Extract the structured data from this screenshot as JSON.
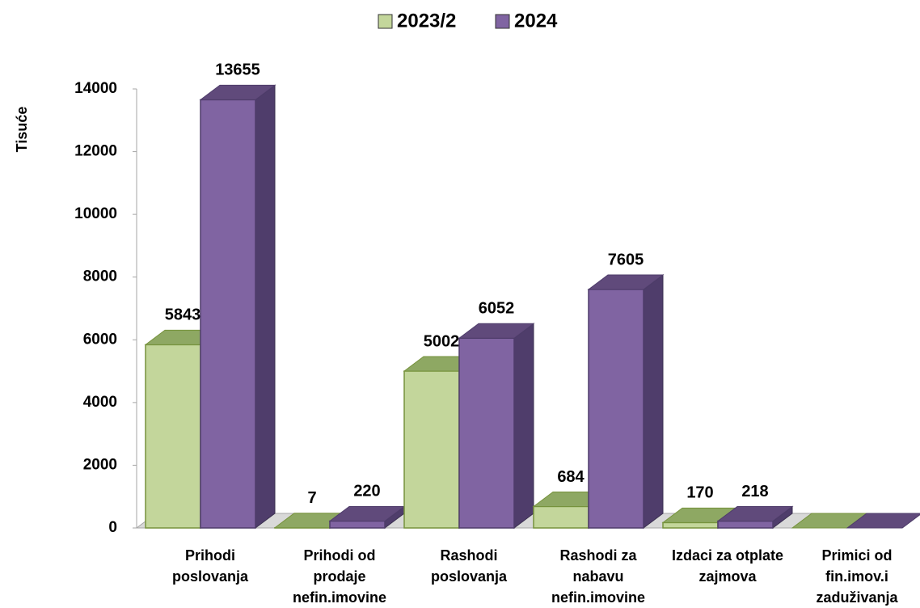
{
  "chart_data": {
    "type": "bar3d",
    "y_label": "Tisuće",
    "categories": [
      "Prihodi poslovanja",
      "Prihodi od prodaje nefin.imovine",
      "Rashodi poslovanja",
      "Rashodi za nabavu nefin.imovine",
      "Izdaci za otplate zajmova",
      "Primici od fin.imov.i zaduživanja"
    ],
    "series": [
      {
        "name": "2023/2",
        "color": "#c3d69b",
        "top": "#8ea863",
        "side": "#76923c",
        "values": [
          5843,
          7,
          5002,
          684,
          170,
          0
        ]
      },
      {
        "name": "2024",
        "color": "#8064a2",
        "top": "#604a7b",
        "side": "#4f3d6b",
        "values": [
          13655,
          220,
          6052,
          7605,
          218,
          0
        ]
      }
    ],
    "ylim": [
      0,
      14000
    ],
    "yticks": [
      0,
      2000,
      4000,
      6000,
      8000,
      10000,
      12000,
      14000
    ],
    "legend": "top",
    "grid": false
  }
}
